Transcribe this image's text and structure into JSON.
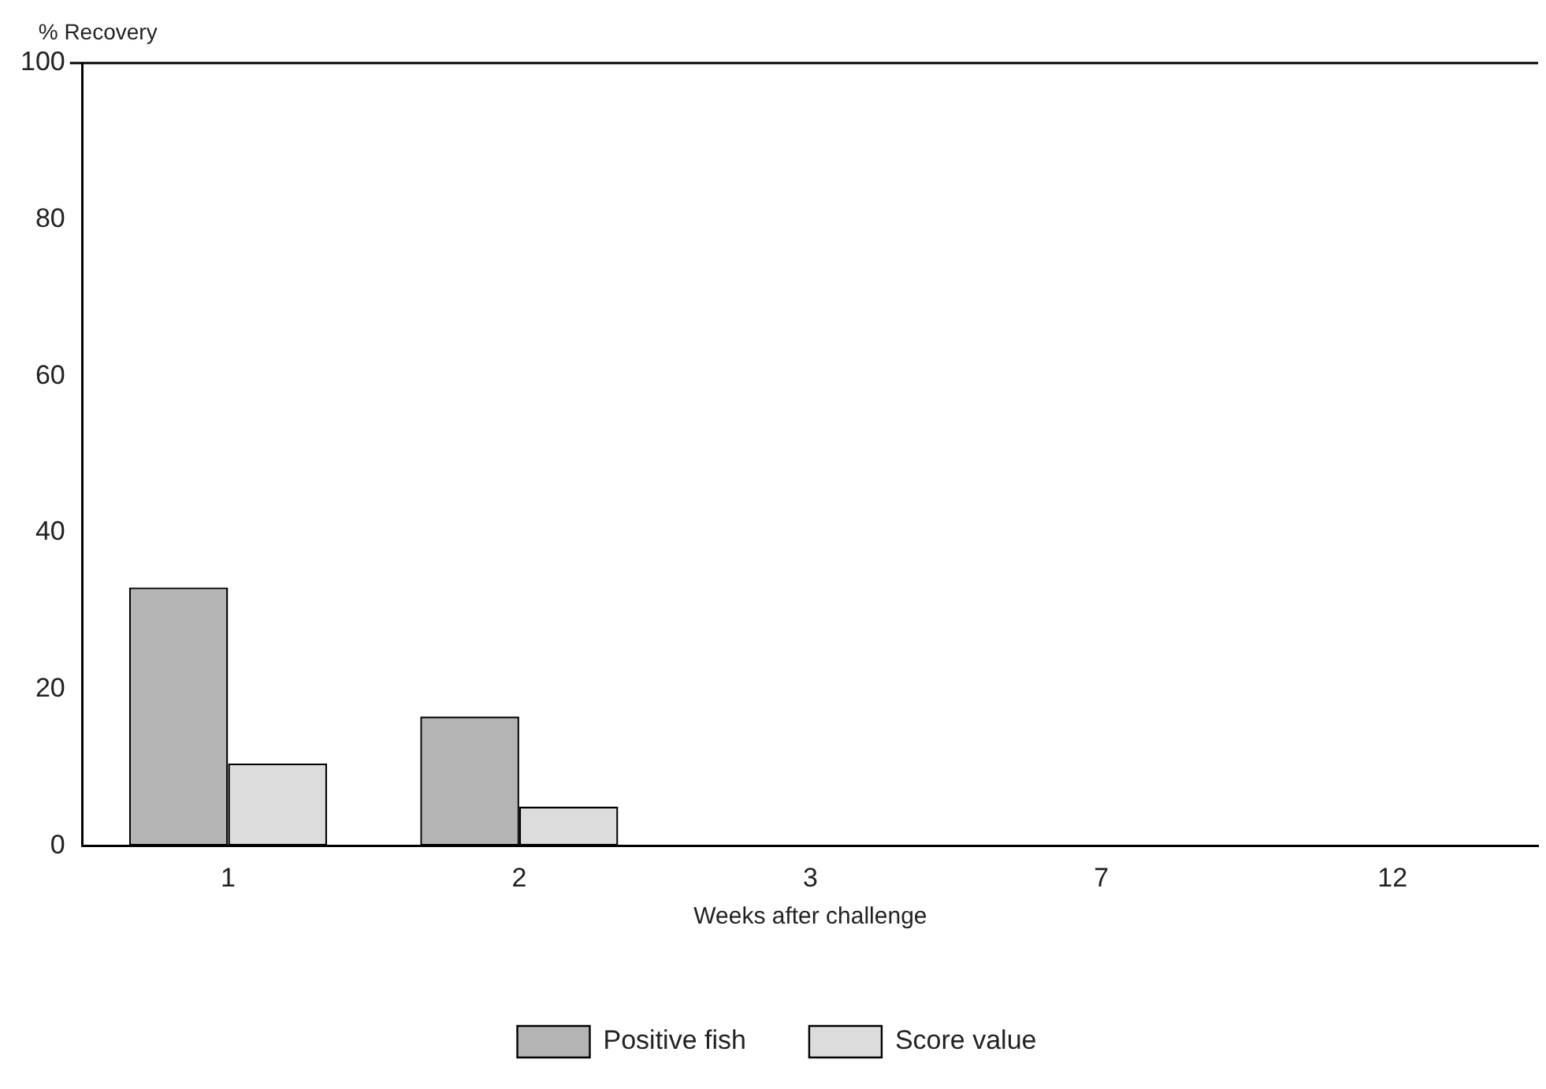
{
  "chart_data": {
    "type": "bar",
    "ylabel": "% Recovery",
    "xlabel": "Weeks after challenge",
    "categories": [
      "1",
      "2",
      "3",
      "7",
      "12"
    ],
    "series": [
      {
        "name": "Positive fish",
        "color": "#b4b4b4",
        "values": [
          33,
          16.5,
          0,
          0,
          0
        ]
      },
      {
        "name": "Score value",
        "color": "#dcdcdc",
        "values": [
          10.5,
          5,
          0,
          0,
          0
        ]
      }
    ],
    "ylim": [
      0,
      100
    ],
    "yticks": [
      0,
      20,
      40,
      60,
      80,
      100
    ],
    "grid": false,
    "legend": "bottom"
  }
}
